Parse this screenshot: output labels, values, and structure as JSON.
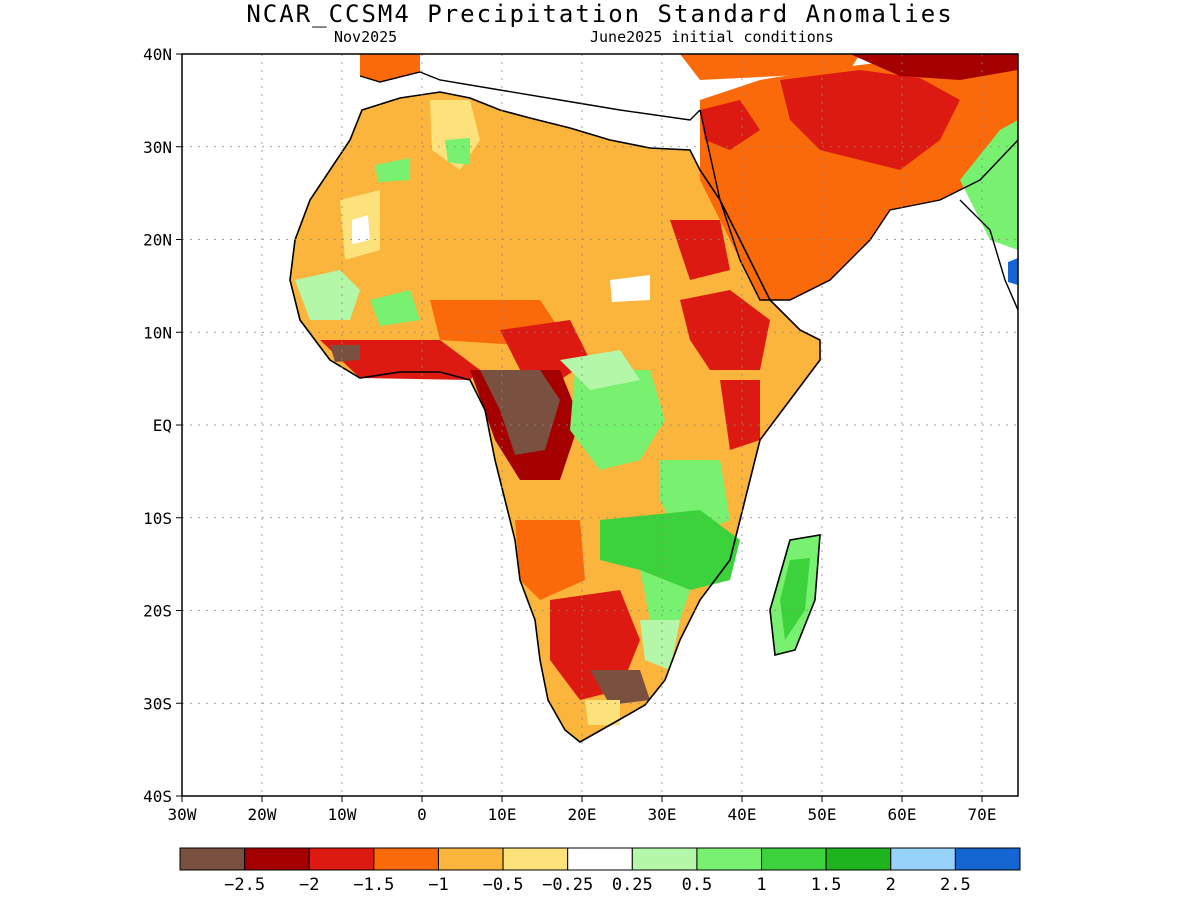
{
  "title": "NCAR_CCSM4 Precipitation Standard Anomalies",
  "subtitle_left": "Nov2025",
  "subtitle_right": "June2025 initial conditions",
  "lat_labels": [
    "40N",
    "30N",
    "20N",
    "10N",
    "EQ",
    "10S",
    "20S",
    "30S",
    "40S"
  ],
  "lon_labels": [
    "30W",
    "20W",
    "10W",
    "0",
    "10E",
    "20E",
    "30E",
    "40E",
    "50E",
    "60E",
    "70E"
  ],
  "colorbar": {
    "colors": [
      "#7a5040",
      "#a50000",
      "#dc1a12",
      "#fa6a0a",
      "#fbb43c",
      "#fde17a",
      "#ffffff",
      "#b4f7a8",
      "#78f070",
      "#3cd23c",
      "#1eb41e",
      "#96d2fa",
      "#1464d2"
    ],
    "labels": [
      "−2.5",
      "−2",
      "−1.5",
      "−1",
      "−0.5",
      "−0.25",
      "0.25",
      "0.5",
      "1",
      "1.5",
      "2",
      "2.5"
    ]
  }
}
